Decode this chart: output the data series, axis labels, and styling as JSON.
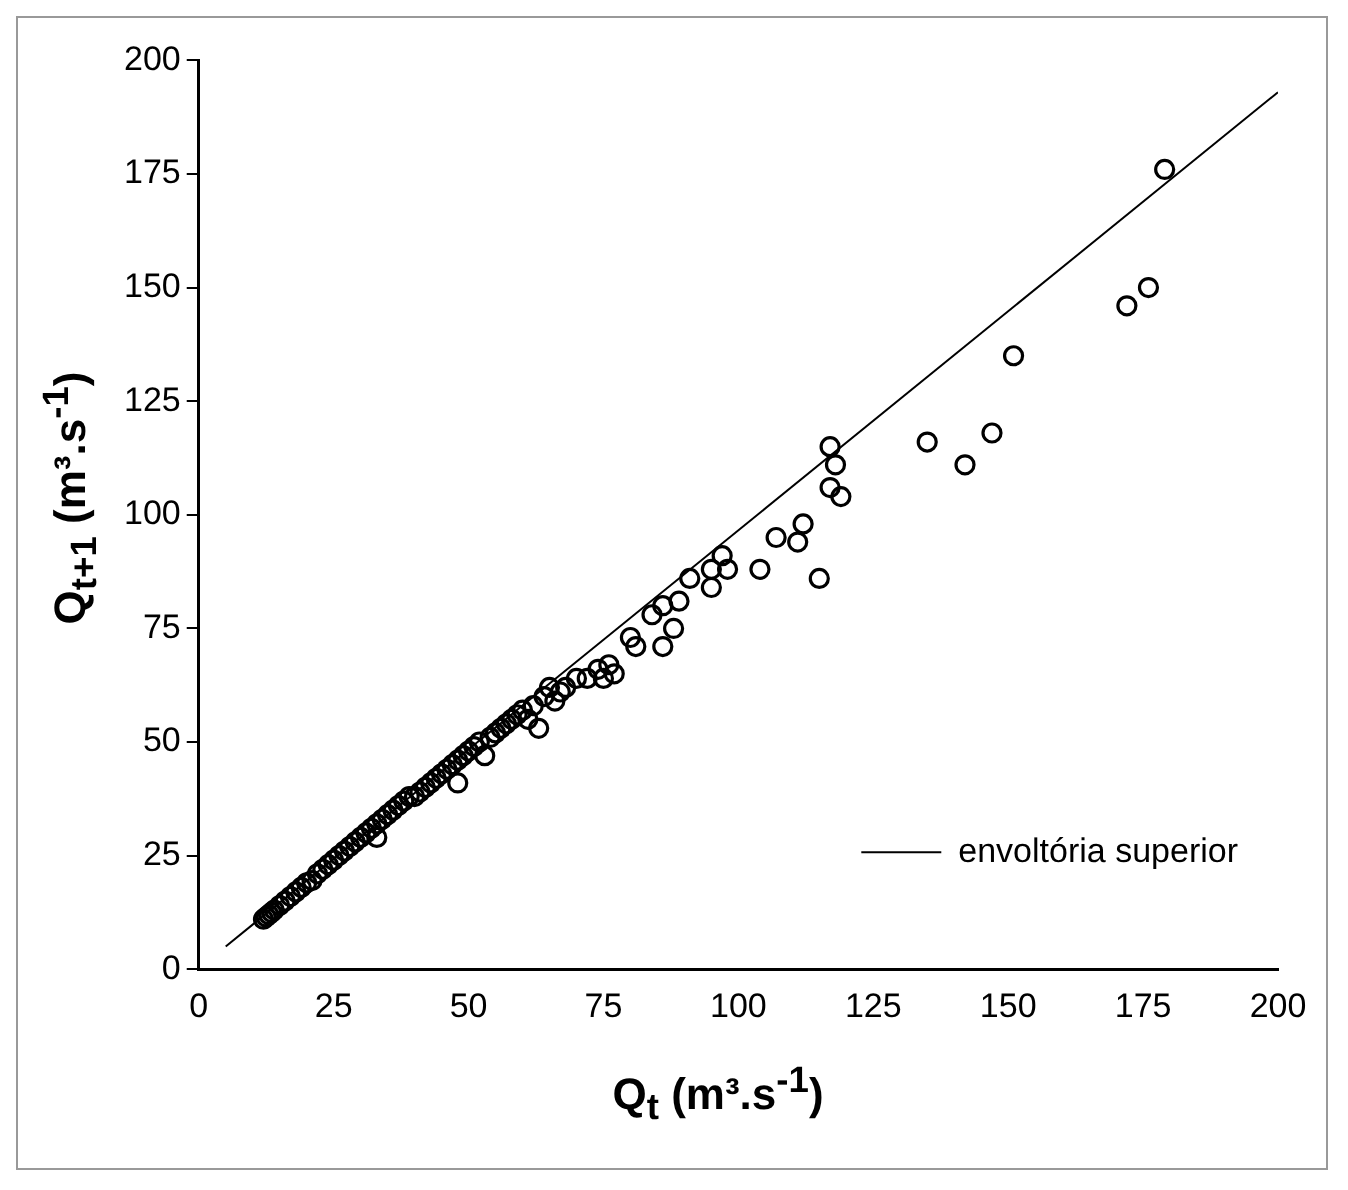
{
  "chart_data": {
    "type": "scatter",
    "xlabel": "Q$_{t}$ (m³.s$^{-1}$)",
    "ylabel": "Q$_{t+1}$ (m³.s$^{-1}$)",
    "xlim": [
      0,
      200
    ],
    "xticks": [
      0,
      25,
      50,
      75,
      100,
      125,
      150,
      175,
      200
    ],
    "ylim": [
      0,
      200
    ],
    "yticks": [
      0,
      25,
      50,
      75,
      100,
      125,
      150,
      175,
      200
    ],
    "grid": false,
    "legend": "bottom right",
    "marker": "circle",
    "series": [
      {
        "color": "#000000",
        "x": [
          12,
          12.5,
          13,
          13.5,
          14,
          15,
          16,
          17,
          18,
          19,
          20,
          21,
          22,
          23,
          24,
          25,
          26,
          27,
          28,
          29,
          30,
          31,
          32,
          33,
          33,
          34,
          35,
          36,
          37,
          38,
          39,
          40,
          41,
          42,
          43,
          44,
          45,
          46,
          47,
          48,
          48,
          49,
          50,
          51,
          52,
          53,
          54,
          55,
          56,
          57,
          58,
          59,
          60,
          61,
          62,
          63,
          64,
          65,
          66,
          67,
          68,
          70,
          72,
          74,
          75,
          76,
          77,
          81,
          86,
          80,
          88,
          84,
          86,
          89,
          95,
          95,
          91,
          97,
          98,
          104,
          112,
          111,
          107,
          115,
          119,
          117,
          118,
          117,
          142,
          147,
          135,
          151,
          176,
          172,
          179
        ],
        "values": [
          11,
          11.5,
          12,
          12.5,
          13,
          14,
          15,
          16,
          17,
          18,
          19,
          19.5,
          21,
          22,
          23,
          24,
          25,
          26,
          27,
          28,
          29,
          30,
          31,
          32,
          29,
          33,
          34,
          35,
          36,
          37,
          38,
          38,
          39,
          40,
          41,
          42,
          43,
          44,
          45,
          41,
          46,
          47,
          48,
          49,
          50,
          47,
          51,
          52,
          53,
          54,
          55,
          56,
          57,
          55,
          58,
          53,
          60,
          62,
          59,
          61,
          62,
          64,
          64,
          66,
          64,
          67,
          65,
          71,
          71,
          73,
          75,
          78,
          80,
          81,
          84,
          88,
          86,
          91,
          88,
          88,
          98,
          94,
          95,
          86,
          104,
          106,
          111,
          115,
          111,
          118,
          116,
          135,
          150,
          146,
          176
        ]
      },
      {
        "type": "line",
        "name": "envoltória superior",
        "color": "#000000",
        "marker": "none",
        "x": [
          5,
          200
        ],
        "values": [
          5,
          193
        ]
      }
    ]
  }
}
